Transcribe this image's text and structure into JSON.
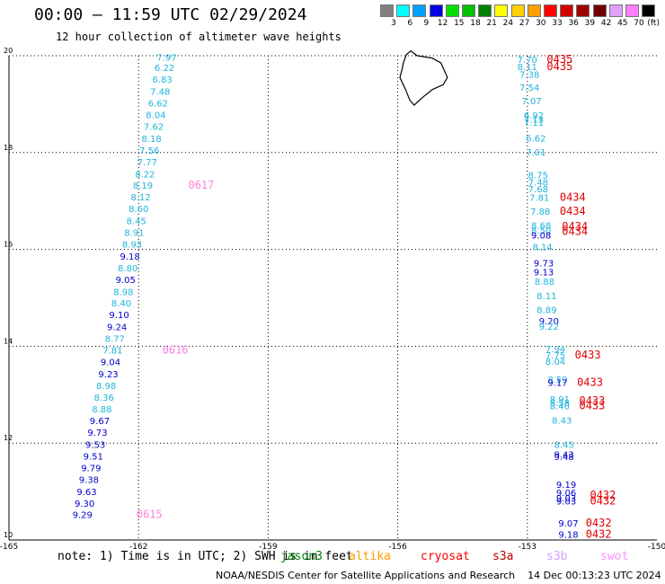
{
  "header": {
    "title": "00:00 — 11:59 UTC 02/29/2024",
    "subtitle": "12 hour collection of altimeter wave heights"
  },
  "legend": {
    "unit": "(ft)",
    "items": [
      {
        "label": "3",
        "color": "#808080"
      },
      {
        "label": "6",
        "color": "#00ffff"
      },
      {
        "label": "9",
        "color": "#00a0ff"
      },
      {
        "label": "12",
        "color": "#0000e0"
      },
      {
        "label": "15",
        "color": "#00e000"
      },
      {
        "label": "18",
        "color": "#00c000"
      },
      {
        "label": "21",
        "color": "#008000"
      },
      {
        "label": "24",
        "color": "#ffff00"
      },
      {
        "label": "27",
        "color": "#ffd000"
      },
      {
        "label": "30",
        "color": "#ffa000"
      },
      {
        "label": "33",
        "color": "#ff0000"
      },
      {
        "label": "36",
        "color": "#d00000"
      },
      {
        "label": "39",
        "color": "#a00000"
      },
      {
        "label": "42",
        "color": "#700000"
      },
      {
        "label": "45",
        "color": "#e0a0ff"
      },
      {
        "label": "70",
        "color": "#ff80ff"
      },
      {
        "label": "",
        "color": "#000000"
      }
    ]
  },
  "note": {
    "prefix": "note: 1) Time is in UTC; 2) SWH is in feet",
    "satellites": [
      {
        "name": "jason3",
        "color": "#008000"
      },
      {
        "name": "altika",
        "color": "#ff9900"
      },
      {
        "name": "cryosat",
        "color": "#ff0000"
      },
      {
        "name": "s3a",
        "color": "#c00000"
      },
      {
        "name": "s3b",
        "color": "#d0a0ff"
      },
      {
        "name": "swot",
        "color": "#ff90ff"
      }
    ]
  },
  "footer": {
    "credit": "NOAA/NESDIS Center for Satellite Applications and Research",
    "timestamp": "14 Dec 00:13:23 UTC 2024"
  },
  "chart_data": {
    "type": "scatter",
    "title": "00:00 — 11:59 UTC 02/29/2024",
    "subtitle": "12 hour collection of altimeter wave heights",
    "xlim": [
      -165,
      -150
    ],
    "ylim": [
      10,
      20
    ],
    "x_ticks": [
      "-165",
      "-162",
      "-159",
      "-156",
      "-153",
      "-150"
    ],
    "x_tick_values": [
      -165,
      -162,
      -159,
      -156,
      -153,
      -150
    ],
    "y_ticks": [
      "10",
      "12",
      "14",
      "16",
      "18",
      "20"
    ],
    "y_tick_values": [
      10,
      12,
      14,
      16,
      18,
      20
    ],
    "grid": true,
    "track_west": {
      "colors": {
        "light": "#1eb4dc",
        "dark": "#0000cc"
      },
      "points": [
        {
          "lon": -161.35,
          "lat": 19.9,
          "v": "7.97",
          "c": "light"
        },
        {
          "lon": -161.4,
          "lat": 19.68,
          "v": "6.22",
          "c": "light"
        },
        {
          "lon": -161.45,
          "lat": 19.44,
          "v": "6.83",
          "c": "light"
        },
        {
          "lon": -161.5,
          "lat": 19.19,
          "v": "7.48",
          "c": "light"
        },
        {
          "lon": -161.55,
          "lat": 18.95,
          "v": "6.62",
          "c": "light"
        },
        {
          "lon": -161.6,
          "lat": 18.71,
          "v": "8.04",
          "c": "light"
        },
        {
          "lon": -161.65,
          "lat": 18.47,
          "v": "7.62",
          "c": "light"
        },
        {
          "lon": -161.7,
          "lat": 18.22,
          "v": "8.18",
          "c": "light"
        },
        {
          "lon": -161.75,
          "lat": 17.98,
          "v": "7.56",
          "c": "light"
        },
        {
          "lon": -161.8,
          "lat": 17.74,
          "v": "7.77",
          "c": "light"
        },
        {
          "lon": -161.85,
          "lat": 17.49,
          "v": "8.22",
          "c": "light"
        },
        {
          "lon": -161.9,
          "lat": 17.25,
          "v": "8.19",
          "c": "light"
        },
        {
          "lon": -161.95,
          "lat": 17.01,
          "v": "8.12",
          "c": "light"
        },
        {
          "lon": -162.0,
          "lat": 16.77,
          "v": "8.60",
          "c": "light"
        },
        {
          "lon": -162.05,
          "lat": 16.52,
          "v": "8.45",
          "c": "light"
        },
        {
          "lon": -162.1,
          "lat": 16.28,
          "v": "8.91",
          "c": "light"
        },
        {
          "lon": -162.15,
          "lat": 16.04,
          "v": "8.93",
          "c": "light"
        },
        {
          "lon": -162.2,
          "lat": 15.79,
          "v": "9.18",
          "c": "dark"
        },
        {
          "lon": -162.25,
          "lat": 15.55,
          "v": "8.80",
          "c": "light"
        },
        {
          "lon": -162.3,
          "lat": 15.31,
          "v": "9.05",
          "c": "dark"
        },
        {
          "lon": -162.35,
          "lat": 15.06,
          "v": "8.98",
          "c": "light"
        },
        {
          "lon": -162.4,
          "lat": 14.82,
          "v": "8.40",
          "c": "light"
        },
        {
          "lon": -162.45,
          "lat": 14.58,
          "v": "9.10",
          "c": "dark"
        },
        {
          "lon": -162.5,
          "lat": 14.33,
          "v": "9.24",
          "c": "dark"
        },
        {
          "lon": -162.55,
          "lat": 14.09,
          "v": "8.77",
          "c": "light"
        },
        {
          "lon": -162.6,
          "lat": 13.85,
          "v": "7.81",
          "c": "light"
        },
        {
          "lon": -162.65,
          "lat": 13.61,
          "v": "9.04",
          "c": "dark"
        },
        {
          "lon": -162.7,
          "lat": 13.36,
          "v": "9.23",
          "c": "dark"
        },
        {
          "lon": -162.75,
          "lat": 13.12,
          "v": "8.98",
          "c": "light"
        },
        {
          "lon": -162.8,
          "lat": 12.88,
          "v": "8.36",
          "c": "light"
        },
        {
          "lon": -162.85,
          "lat": 12.63,
          "v": "8.88",
          "c": "light"
        },
        {
          "lon": -162.9,
          "lat": 12.39,
          "v": "9.67",
          "c": "dark"
        },
        {
          "lon": -162.95,
          "lat": 12.15,
          "v": "9.73",
          "c": "dark"
        },
        {
          "lon": -163.0,
          "lat": 11.9,
          "v": "9.53",
          "c": "dark"
        },
        {
          "lon": -163.05,
          "lat": 11.66,
          "v": "9.51",
          "c": "dark"
        },
        {
          "lon": -163.1,
          "lat": 11.42,
          "v": "9.79",
          "c": "dark"
        },
        {
          "lon": -163.15,
          "lat": 11.18,
          "v": "9.38",
          "c": "dark"
        },
        {
          "lon": -163.2,
          "lat": 10.93,
          "v": "9.63",
          "c": "dark"
        },
        {
          "lon": -163.25,
          "lat": 10.69,
          "v": "9.30",
          "c": "dark"
        },
        {
          "lon": -163.3,
          "lat": 10.45,
          "v": "9.29",
          "c": "dark"
        }
      ],
      "time_labels": [
        {
          "lon": -160.85,
          "lat": 17.25,
          "text": "0617",
          "color": "#ff80e0"
        },
        {
          "lon": -161.45,
          "lat": 13.85,
          "text": "0616",
          "color": "#ff80e0"
        },
        {
          "lon": -162.05,
          "lat": 10.45,
          "text": "0615",
          "color": "#ff80e0"
        }
      ]
    },
    "track_east": {
      "colors": {
        "light": "#1eb4dc",
        "dark": "#0000cc"
      },
      "points": [
        {
          "lon": -153.0,
          "lat": 19.85,
          "v": "7.70",
          "c": "light"
        },
        {
          "lon": -153.0,
          "lat": 19.7,
          "v": "8.11",
          "c": "light"
        },
        {
          "lon": -152.95,
          "lat": 19.55,
          "v": "7.38",
          "c": "light"
        },
        {
          "lon": -152.95,
          "lat": 19.28,
          "v": "7.54",
          "c": "light"
        },
        {
          "lon": -152.9,
          "lat": 19.0,
          "v": "7.07",
          "c": "light"
        },
        {
          "lon": -152.85,
          "lat": 18.7,
          "v": "6.92",
          "c": "light"
        },
        {
          "lon": -152.85,
          "lat": 18.62,
          "v": "7.13",
          "c": "light"
        },
        {
          "lon": -152.85,
          "lat": 18.55,
          "v": "7.11",
          "c": "light"
        },
        {
          "lon": -152.8,
          "lat": 18.23,
          "v": "6.62",
          "c": "light"
        },
        {
          "lon": -152.8,
          "lat": 17.94,
          "v": "7.01",
          "c": "light"
        },
        {
          "lon": -152.75,
          "lat": 17.47,
          "v": "8.75",
          "c": "light"
        },
        {
          "lon": -152.75,
          "lat": 17.32,
          "v": "7.48",
          "c": "light"
        },
        {
          "lon": -152.75,
          "lat": 17.18,
          "v": "7.68",
          "c": "light"
        },
        {
          "lon": -152.72,
          "lat": 17.0,
          "v": "7.81",
          "c": "light"
        },
        {
          "lon": -152.7,
          "lat": 16.72,
          "v": "7.88",
          "c": "light"
        },
        {
          "lon": -152.68,
          "lat": 16.43,
          "v": "8.68",
          "c": "light"
        },
        {
          "lon": -152.68,
          "lat": 16.33,
          "v": "8.50",
          "c": "light"
        },
        {
          "lon": -152.68,
          "lat": 16.22,
          "v": "9.08",
          "c": "dark"
        },
        {
          "lon": -152.65,
          "lat": 15.98,
          "v": "8.14",
          "c": "light"
        },
        {
          "lon": -152.62,
          "lat": 15.65,
          "v": "9.73",
          "c": "dark"
        },
        {
          "lon": -152.62,
          "lat": 15.46,
          "v": "9.13",
          "c": "dark"
        },
        {
          "lon": -152.6,
          "lat": 15.27,
          "v": "8.88",
          "c": "light"
        },
        {
          "lon": -152.55,
          "lat": 14.97,
          "v": "8.11",
          "c": "light"
        },
        {
          "lon": -152.55,
          "lat": 14.68,
          "v": "8.89",
          "c": "light"
        },
        {
          "lon": -152.5,
          "lat": 14.45,
          "v": "9.20",
          "c": "dark"
        },
        {
          "lon": -152.5,
          "lat": 14.34,
          "v": "9.22",
          "c": "light"
        },
        {
          "lon": -152.35,
          "lat": 13.88,
          "v": "7.94",
          "c": "light"
        },
        {
          "lon": -152.35,
          "lat": 13.75,
          "v": "7.75",
          "c": "light"
        },
        {
          "lon": -152.35,
          "lat": 13.62,
          "v": "8.04",
          "c": "light"
        },
        {
          "lon": -152.3,
          "lat": 13.25,
          "v": "8.59",
          "c": "light"
        },
        {
          "lon": -152.3,
          "lat": 13.18,
          "v": "9.17",
          "c": "dark"
        },
        {
          "lon": -152.25,
          "lat": 12.84,
          "v": "8.91",
          "c": "light"
        },
        {
          "lon": -152.25,
          "lat": 12.76,
          "v": "8.58",
          "c": "light"
        },
        {
          "lon": -152.25,
          "lat": 12.7,
          "v": "8.40",
          "c": "light"
        },
        {
          "lon": -152.2,
          "lat": 12.4,
          "v": "8.43",
          "c": "light"
        },
        {
          "lon": -152.15,
          "lat": 11.9,
          "v": "8.45",
          "c": "light"
        },
        {
          "lon": -152.15,
          "lat": 11.7,
          "v": "9.43",
          "c": "dark"
        },
        {
          "lon": -152.15,
          "lat": 11.65,
          "v": "9.48",
          "c": "dark"
        },
        {
          "lon": -152.1,
          "lat": 11.08,
          "v": "9.19",
          "c": "dark"
        },
        {
          "lon": -152.1,
          "lat": 10.91,
          "v": "9.06",
          "c": "dark"
        },
        {
          "lon": -152.1,
          "lat": 10.8,
          "v": "9.03",
          "c": "dark"
        },
        {
          "lon": -152.1,
          "lat": 10.73,
          "v": "9.03",
          "c": "dark"
        },
        {
          "lon": -152.05,
          "lat": 10.28,
          "v": "9.07",
          "c": "dark"
        },
        {
          "lon": -152.05,
          "lat": 10.05,
          "v": "9.18",
          "c": "dark"
        }
      ],
      "time_labels": [
        {
          "lon": -152.55,
          "lat": 19.85,
          "text": "0435",
          "color": "#e00000"
        },
        {
          "lon": -152.55,
          "lat": 19.7,
          "text": "0435",
          "color": "#e00000"
        },
        {
          "lon": -152.25,
          "lat": 17.0,
          "text": "0434",
          "color": "#e00000"
        },
        {
          "lon": -152.25,
          "lat": 16.72,
          "text": "0434",
          "color": "#e00000"
        },
        {
          "lon": -152.2,
          "lat": 16.4,
          "text": "0434",
          "color": "#e00000"
        },
        {
          "lon": -152.2,
          "lat": 16.3,
          "text": "0434",
          "color": "#e00000"
        },
        {
          "lon": -151.9,
          "lat": 13.75,
          "text": "0433",
          "color": "#e00000"
        },
        {
          "lon": -151.85,
          "lat": 13.18,
          "text": "0433",
          "color": "#e00000"
        },
        {
          "lon": -151.8,
          "lat": 12.8,
          "text": "0433",
          "color": "#e00000"
        },
        {
          "lon": -151.8,
          "lat": 12.7,
          "text": "0433",
          "color": "#e00000"
        },
        {
          "lon": -151.55,
          "lat": 10.85,
          "text": "0432",
          "color": "#e00000"
        },
        {
          "lon": -151.55,
          "lat": 10.73,
          "text": "0432",
          "color": "#e00000"
        },
        {
          "lon": -151.65,
          "lat": 10.28,
          "text": "0432",
          "color": "#e00000"
        },
        {
          "lon": -151.65,
          "lat": 10.05,
          "text": "0432",
          "color": "#e00000"
        }
      ]
    },
    "island_outline": [
      [
        -155.87,
        19.85
      ],
      [
        -155.8,
        20.02
      ],
      [
        -155.7,
        20.1
      ],
      [
        -155.55,
        20.0
      ],
      [
        -155.2,
        19.95
      ],
      [
        -155.0,
        19.85
      ],
      [
        -154.85,
        19.55
      ],
      [
        -154.95,
        19.4
      ],
      [
        -155.2,
        19.3
      ],
      [
        -155.45,
        19.12
      ],
      [
        -155.62,
        18.98
      ],
      [
        -155.72,
        19.08
      ],
      [
        -155.82,
        19.3
      ],
      [
        -155.95,
        19.55
      ],
      [
        -155.9,
        19.72
      ]
    ]
  }
}
